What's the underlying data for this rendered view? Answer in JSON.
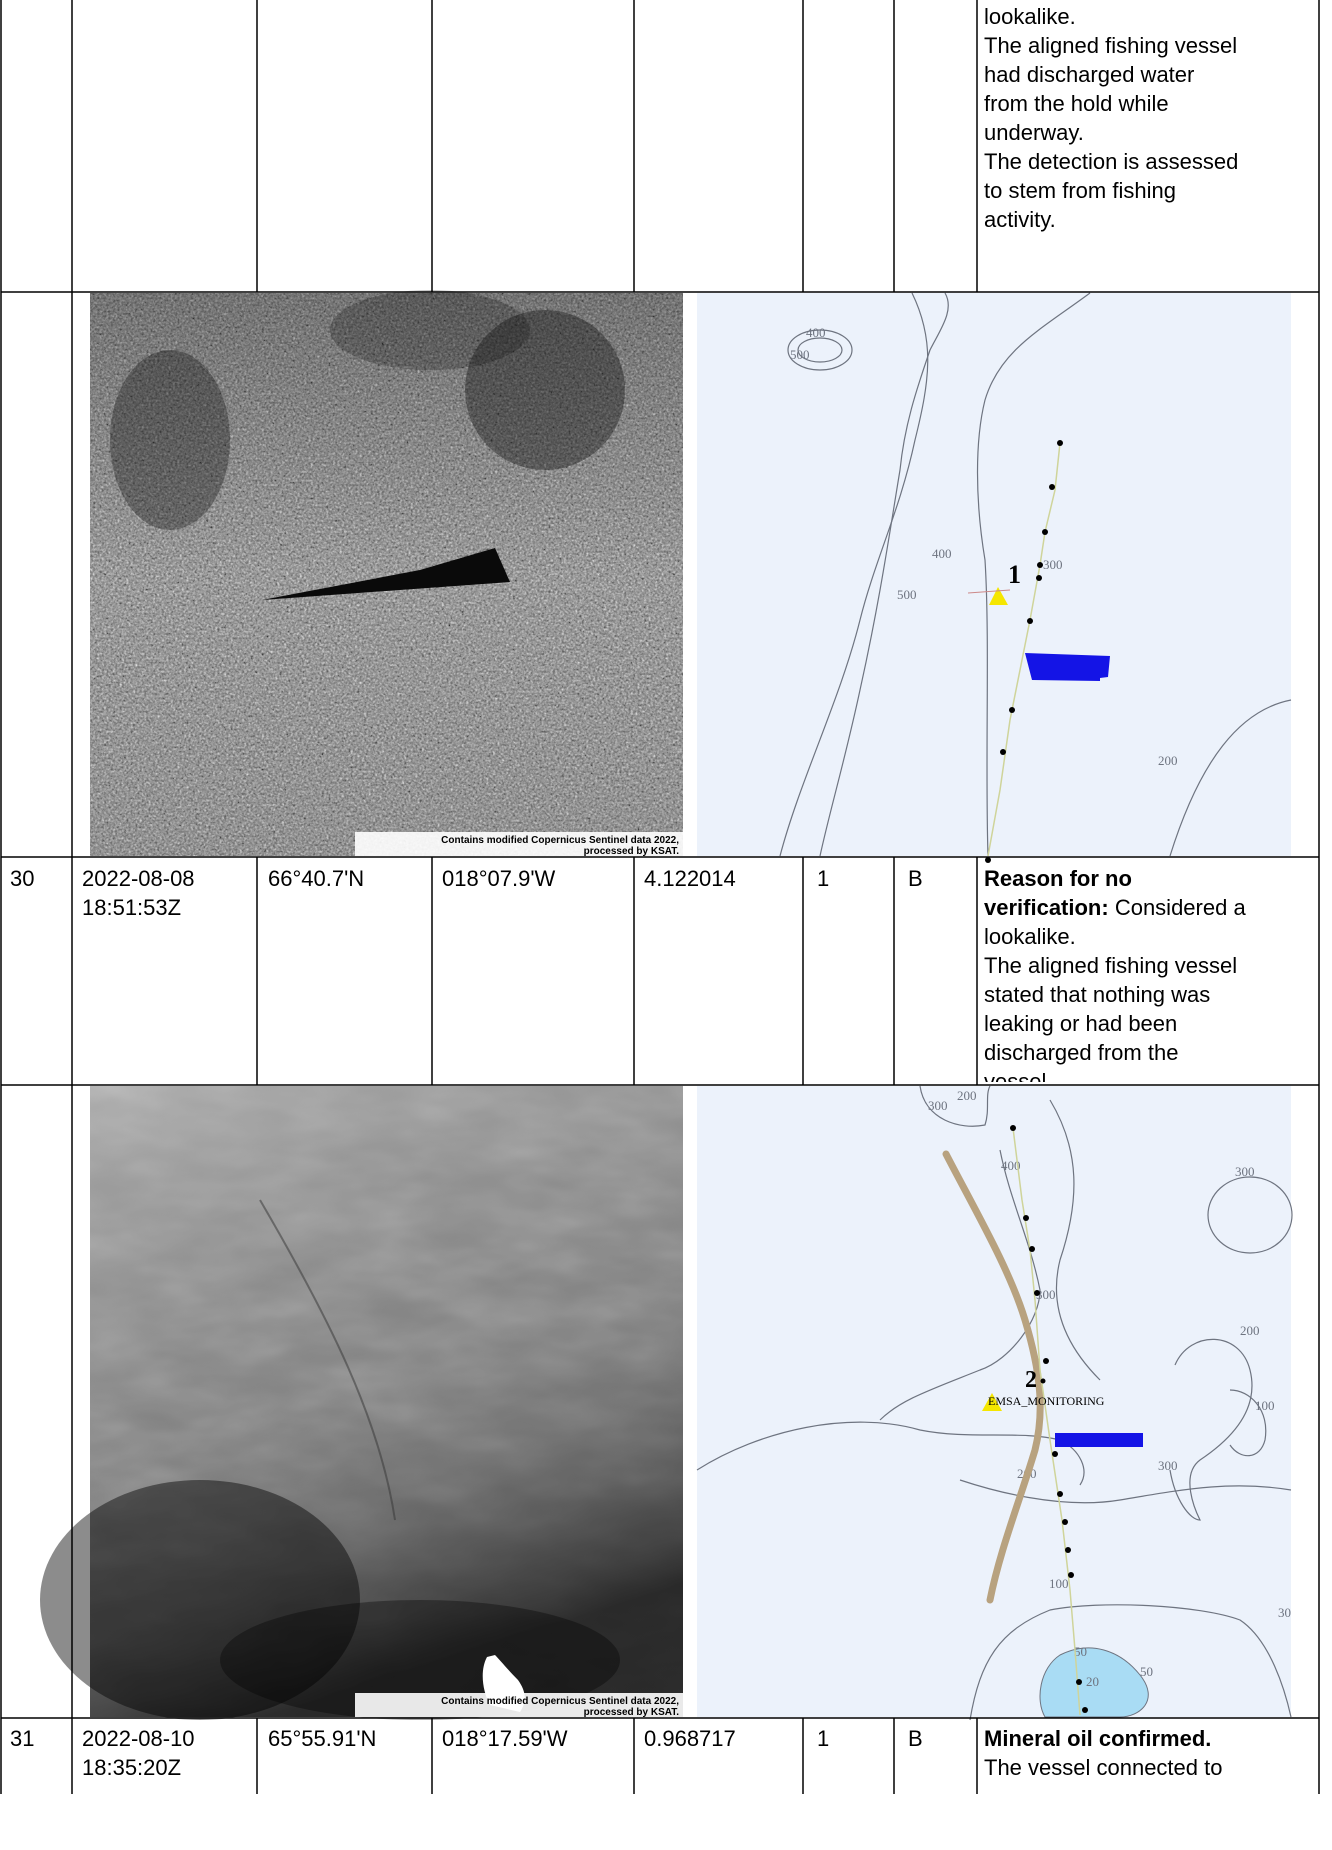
{
  "table": {
    "row_29_continued": {
      "remarks": [
        "lookalike.",
        "The aligned fishing vessel",
        "had discharged water",
        "from the hold while",
        "underway.",
        "The detection is assessed",
        "to stem from fishing",
        "activity."
      ]
    },
    "image_row_29": {
      "sar_credit_line1": "Contains modified Copernicus Sentinel data 2022,",
      "sar_credit_line2": "processed by KSAT.",
      "map": {
        "vessel_number": "1",
        "contour_labels": [
          "400",
          "500",
          "400",
          "500",
          "300",
          "200"
        ]
      }
    },
    "row_30": {
      "no": "30",
      "date": "2022-08-08",
      "time": "18:51:53Z",
      "lat": "66°40.7'N",
      "lon": "018°07.9'W",
      "area": "4.122014",
      "count": "1",
      "class": "B",
      "remarks_bold": "Reason for no verification:",
      "remarks": [
        "Considered a",
        "lookalike.",
        "The aligned fishing vessel",
        "stated that nothing was",
        "leaking or had been",
        "discharged from the",
        "vessel."
      ],
      "remarks_bold_lines": [
        "Reason for no",
        "verification:"
      ]
    },
    "image_row_30": {
      "sar_credit_line1": "Contains modified Copernicus Sentinel data 2022,",
      "sar_credit_line2": "processed by KSAT.",
      "map": {
        "vessel_number": "2",
        "monitoring_label": "EMSA_MONITORING",
        "contour_labels": [
          "300",
          "200",
          "400",
          "300",
          "200",
          "300",
          "100",
          "200",
          "300",
          "100",
          "50",
          "20",
          "50",
          "30"
        ]
      }
    },
    "row_31": {
      "no": "31",
      "date": "2022-08-10",
      "time": "18:35:20Z",
      "lat": "65°55.91'N",
      "lon": "018°17.59'W",
      "area": "0.968717",
      "count": "1",
      "class": "B",
      "remarks_bold": "Mineral oil confirmed.",
      "remarks": [
        "The vessel connected to"
      ]
    }
  },
  "colors": {
    "map_background": "#ecf2fb",
    "contour": "#6e7480",
    "track": "#cfd49a",
    "slick": "#1414e6",
    "vessel": "#f5e600",
    "shallow": "#a9dcf4",
    "trail": "#b8a27f"
  }
}
